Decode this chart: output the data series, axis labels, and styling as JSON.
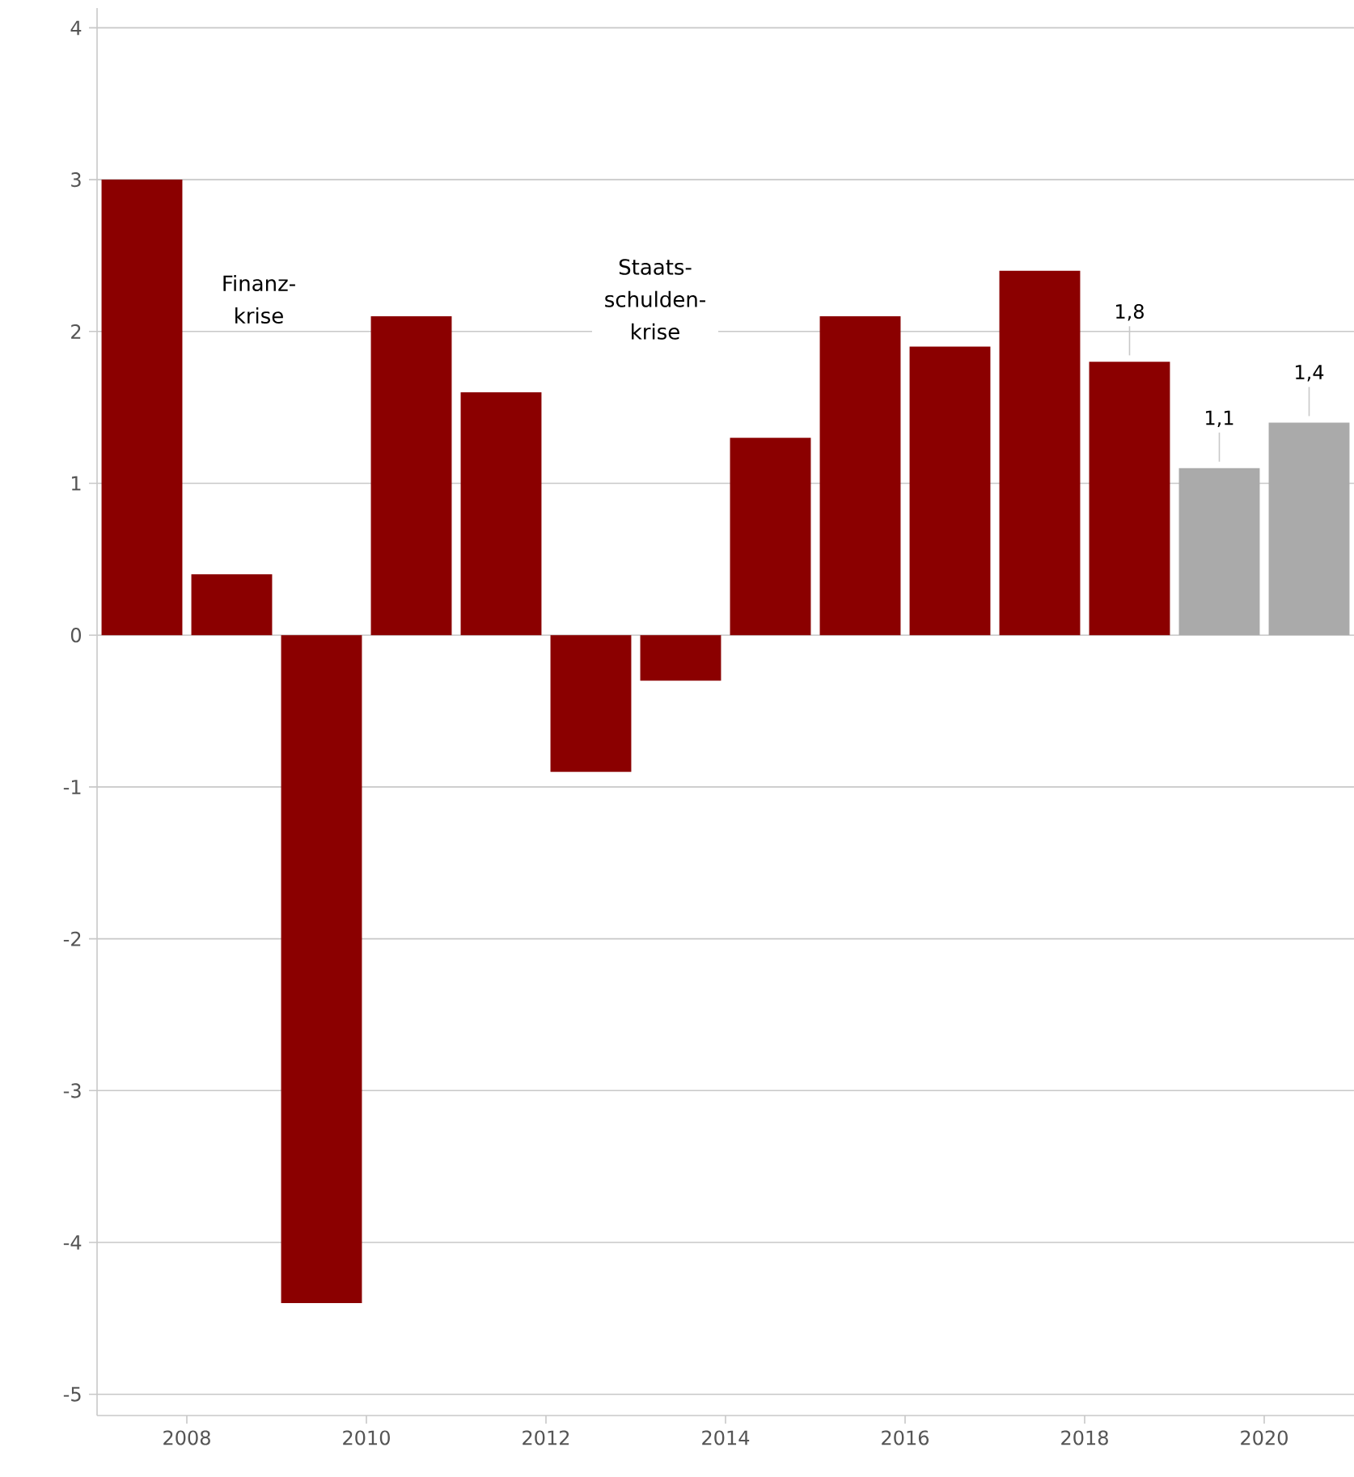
{
  "chart_data": {
    "type": "bar",
    "x": [
      2007.5,
      2008.5,
      2009.5,
      2010.5,
      2011.5,
      2012.5,
      2013.5,
      2014.5,
      2015.5,
      2016.5,
      2017.5,
      2018.5,
      2019.5,
      2020.5
    ],
    "values": [
      3.0,
      0.4,
      -4.4,
      2.1,
      1.6,
      -0.9,
      -0.3,
      1.3,
      2.1,
      1.9,
      2.4,
      1.8,
      1.1,
      1.4
    ],
    "colors": [
      "#8b0000",
      "#8b0000",
      "#8b0000",
      "#8b0000",
      "#8b0000",
      "#8b0000",
      "#8b0000",
      "#8b0000",
      "#8b0000",
      "#8b0000",
      "#8b0000",
      "#8b0000",
      "#aaaaaa",
      "#aaaaaa"
    ],
    "value_labels": [
      null,
      null,
      null,
      null,
      null,
      null,
      null,
      null,
      null,
      null,
      null,
      "1,8",
      "1,1",
      "1,4"
    ],
    "xlim": [
      2007,
      2021
    ],
    "xticks": [
      2008,
      2010,
      2012,
      2014,
      2016,
      2018,
      2020
    ],
    "ylim": [
      -5.14,
      4.13
    ],
    "yticks": [
      -5,
      -4,
      -3,
      -2,
      -1,
      0,
      1,
      2,
      3,
      4
    ],
    "grid": "y",
    "annotations": [
      "Finanz- krise",
      "Staats- schulden- krise"
    ]
  }
}
